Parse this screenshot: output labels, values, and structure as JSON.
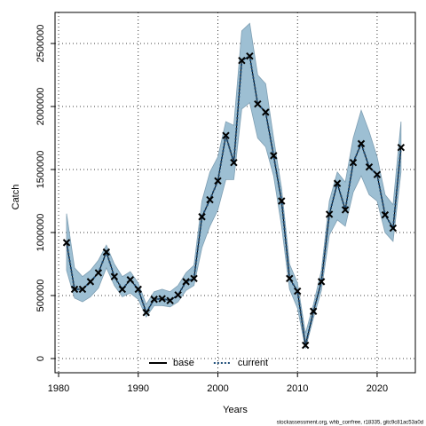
{
  "chart_data": {
    "type": "line",
    "xlabel": "Years",
    "ylabel": "Catch",
    "footer": "stockassessment.org, whb_corrfree, r18335, gitc9c81ac53a0d",
    "x": [
      1981,
      1982,
      1983,
      1984,
      1985,
      1986,
      1987,
      1988,
      1989,
      1990,
      1991,
      1992,
      1993,
      1994,
      1995,
      1996,
      1997,
      1998,
      1999,
      2000,
      2001,
      2002,
      2003,
      2004,
      2005,
      2006,
      2007,
      2008,
      2009,
      2010,
      2011,
      2012,
      2013,
      2014,
      2015,
      2016,
      2017,
      2018,
      2019,
      2020,
      2021,
      2022,
      2023
    ],
    "series": [
      {
        "name": "base",
        "color": "#000000",
        "style": "solid",
        "values": [
          920000,
          550000,
          550000,
          610000,
          680000,
          845000,
          650000,
          550000,
          625000,
          550000,
          365000,
          470000,
          475000,
          460000,
          505000,
          610000,
          635000,
          1125000,
          1260000,
          1410000,
          1770000,
          1555000,
          2365000,
          2400000,
          2020000,
          1955000,
          1610000,
          1250000,
          635000,
          535000,
          105000,
          375000,
          610000,
          1145000,
          1390000,
          1180000,
          1555000,
          1705000,
          1520000,
          1460000,
          1140000,
          1035000,
          1675000
        ]
      },
      {
        "name": "current",
        "color": "#1f4e79",
        "style": "dotted",
        "marker": "x",
        "marker_color": "#000000",
        "values": [
          920000,
          550000,
          550000,
          610000,
          680000,
          845000,
          650000,
          550000,
          625000,
          550000,
          365000,
          470000,
          475000,
          460000,
          505000,
          610000,
          635000,
          1125000,
          1260000,
          1410000,
          1770000,
          1555000,
          2365000,
          2400000,
          2020000,
          1955000,
          1610000,
          1250000,
          635000,
          535000,
          105000,
          375000,
          610000,
          1145000,
          1390000,
          1180000,
          1555000,
          1705000,
          1520000,
          1460000,
          1140000,
          1035000,
          1675000
        ]
      }
    ],
    "band": {
      "color": "#9dbfd3",
      "upper": [
        1150000,
        720000,
        650000,
        700000,
        780000,
        900000,
        750000,
        650000,
        690000,
        600000,
        430000,
        530000,
        550000,
        530000,
        580000,
        680000,
        740000,
        1250000,
        1480000,
        1600000,
        1880000,
        1850000,
        2600000,
        2660000,
        2250000,
        2180000,
        1750000,
        1350000,
        750000,
        600000,
        200000,
        430000,
        700000,
        1250000,
        1480000,
        1400000,
        1750000,
        1970000,
        1800000,
        1600000,
        1300000,
        1220000,
        1880000
      ],
      "lower": [
        700000,
        480000,
        450000,
        490000,
        560000,
        720000,
        580000,
        490000,
        520000,
        470000,
        330000,
        420000,
        420000,
        410000,
        450000,
        540000,
        580000,
        880000,
        1050000,
        1180000,
        1420000,
        1420000,
        1980000,
        2030000,
        1750000,
        1680000,
        1450000,
        1050000,
        550000,
        400000,
        80000,
        320000,
        540000,
        980000,
        1100000,
        1050000,
        1320000,
        1450000,
        1300000,
        1250000,
        1000000,
        930000,
        1480000
      ]
    },
    "xlim": [
      1979.55,
      2024.8
    ],
    "ylim": [
      -112676,
      2746478
    ],
    "xticks": [
      1980,
      1990,
      2000,
      2010,
      2020
    ],
    "yticks": [
      0,
      500000,
      1000000,
      1500000,
      2000000,
      2500000
    ],
    "grid": true,
    "legend": "bottom"
  }
}
